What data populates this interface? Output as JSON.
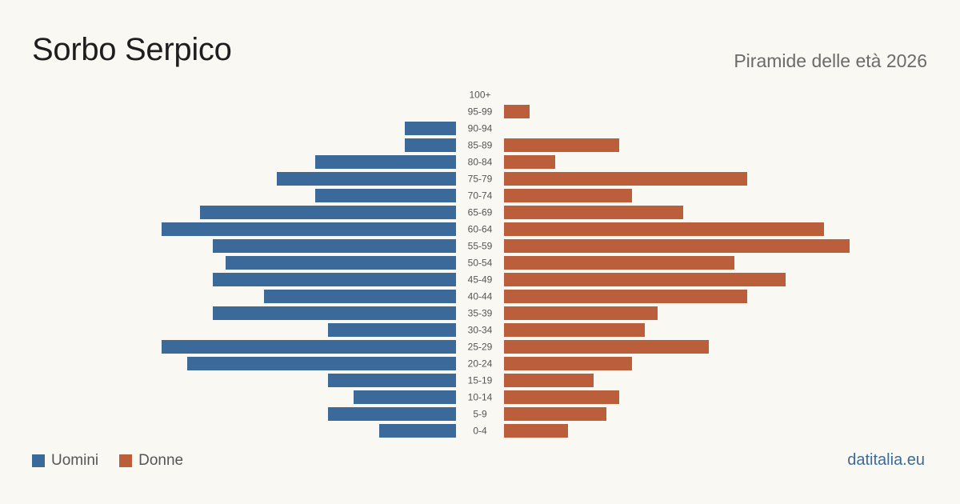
{
  "header": {
    "title": "Sorbo Serpico",
    "subtitle": "Piramide delle età 2026"
  },
  "legend": {
    "male_label": "Uomini",
    "female_label": "Donne"
  },
  "source": "datitalia.eu",
  "colors": {
    "male": "#3b6a9a",
    "female": "#bb5e3c",
    "background": "#faf8f3"
  },
  "chart_data": {
    "type": "bar",
    "orientation": "horizontal-population-pyramid",
    "categories": [
      "100+",
      "95-99",
      "90-94",
      "85-89",
      "80-84",
      "75-79",
      "70-74",
      "65-69",
      "60-64",
      "55-59",
      "50-54",
      "45-49",
      "40-44",
      "35-39",
      "30-34",
      "25-29",
      "20-24",
      "15-19",
      "10-14",
      "5-9",
      "0-4"
    ],
    "series": [
      {
        "name": "Uomini",
        "values": [
          0,
          0,
          4,
          4,
          11,
          14,
          11,
          20,
          23,
          19,
          18,
          19,
          15,
          19,
          10,
          23,
          21,
          10,
          8,
          10,
          6
        ]
      },
      {
        "name": "Donne",
        "values": [
          0,
          2,
          0,
          9,
          4,
          19,
          10,
          14,
          25,
          27,
          18,
          22,
          19,
          12,
          11,
          16,
          10,
          7,
          9,
          8,
          5
        ]
      }
    ]
  }
}
